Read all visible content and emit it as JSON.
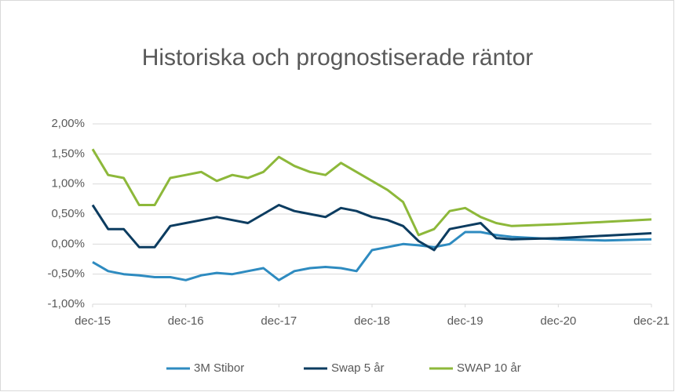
{
  "chart_data": {
    "type": "line",
    "title": "Historiska och prognostiserade räntor",
    "x": [
      0,
      2,
      4,
      6,
      8,
      10,
      12,
      14,
      16,
      18,
      20,
      22,
      24,
      26,
      28,
      30,
      32,
      34,
      36,
      38,
      40,
      42,
      44,
      46,
      48,
      50,
      52,
      54,
      60,
      66,
      72
    ],
    "xlim": [
      0,
      72
    ],
    "xticks": [
      {
        "value": 0,
        "label": "dec-15"
      },
      {
        "value": 12,
        "label": "dec-16"
      },
      {
        "value": 24,
        "label": "dec-17"
      },
      {
        "value": 36,
        "label": "dec-18"
      },
      {
        "value": 48,
        "label": "dec-19"
      },
      {
        "value": 60,
        "label": "dec-20"
      },
      {
        "value": 72,
        "label": "dec-21"
      }
    ],
    "ylim": [
      -1,
      2
    ],
    "yticks": [
      {
        "value": -1,
        "label": "-1,00%"
      },
      {
        "value": -0.5,
        "label": "-0,50%"
      },
      {
        "value": 0,
        "label": "0,00%"
      },
      {
        "value": 0.5,
        "label": "0,50%"
      },
      {
        "value": 1,
        "label": "1,00%"
      },
      {
        "value": 1.5,
        "label": "1,50%"
      },
      {
        "value": 2,
        "label": "2,00%"
      }
    ],
    "grid": true,
    "legend": "bottom",
    "series": [
      {
        "name": "3M Stibor",
        "color": "#2e8bc0",
        "values": [
          -0.3,
          -0.45,
          -0.5,
          -0.52,
          -0.55,
          -0.55,
          -0.6,
          -0.52,
          -0.48,
          -0.5,
          -0.45,
          -0.4,
          -0.6,
          -0.45,
          -0.4,
          -0.38,
          -0.4,
          -0.45,
          -0.1,
          -0.05,
          0.0,
          -0.02,
          -0.05,
          0.0,
          0.2,
          0.2,
          0.15,
          0.12,
          0.08,
          0.06,
          0.08
        ]
      },
      {
        "name": "Swap 5 år",
        "color": "#0c3c60",
        "values": [
          0.65,
          0.25,
          0.25,
          -0.05,
          -0.05,
          0.3,
          0.35,
          0.4,
          0.45,
          0.4,
          0.35,
          0.5,
          0.65,
          0.55,
          0.5,
          0.45,
          0.6,
          0.55,
          0.45,
          0.4,
          0.3,
          0.05,
          -0.1,
          0.25,
          0.3,
          0.35,
          0.1,
          0.08,
          0.1,
          0.14,
          0.18
        ]
      },
      {
        "name": "SWAP 10 år",
        "color": "#8db83a",
        "values": [
          1.58,
          1.15,
          1.1,
          0.65,
          0.65,
          1.1,
          1.15,
          1.2,
          1.05,
          1.15,
          1.1,
          1.2,
          1.45,
          1.3,
          1.2,
          1.15,
          1.35,
          1.2,
          1.05,
          0.9,
          0.7,
          0.15,
          0.25,
          0.55,
          0.6,
          0.45,
          0.35,
          0.3,
          0.33,
          0.37,
          0.41
        ]
      }
    ]
  }
}
